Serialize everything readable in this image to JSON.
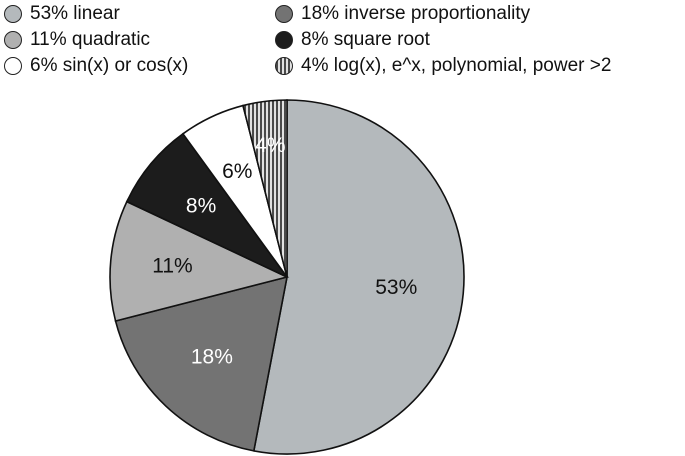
{
  "chart_data": {
    "type": "pie",
    "slices": [
      {
        "label": "linear",
        "value": 53,
        "value_label": "53%",
        "legend": "53% linear",
        "color": "#b4b9bc",
        "label_color": "#111111"
      },
      {
        "label": "inverse proportionality",
        "value": 18,
        "value_label": "18%",
        "legend": "18% inverse proportionality",
        "color": "#737373",
        "label_color": "#ffffff"
      },
      {
        "label": "quadratic",
        "value": 11,
        "value_label": "11%",
        "legend": "11% quadratic",
        "color": "#b0b0b0",
        "label_color": "#111111"
      },
      {
        "label": "square root",
        "value": 8,
        "value_label": "8%",
        "legend": "8% square root",
        "color": "#1c1c1c",
        "label_color": "#ffffff"
      },
      {
        "label": "sin(x) or cos(x)",
        "value": 6,
        "value_label": "6%",
        "legend": "6% sin(x) or cos(x)",
        "color": "#ffffff",
        "label_color": "#111111"
      },
      {
        "label": "log(x), e^x, polynomial, power >2",
        "value": 4,
        "value_label": "4%",
        "legend": "4% log(x), e^x, polynomial, power >2",
        "color": "#9a9a9a",
        "label_color": "#ffffff",
        "pattern": "vertical-stripes"
      }
    ],
    "start": "12 o'clock",
    "direction": "clockwise",
    "legend_position": "top"
  }
}
